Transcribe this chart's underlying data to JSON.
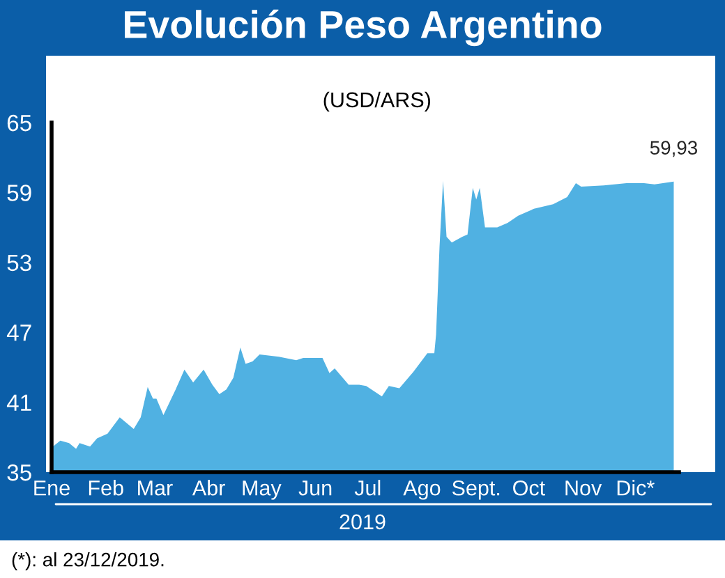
{
  "chart_data": {
    "type": "area",
    "title": "Evolución Peso Argentino",
    "subtitle": "(USD/ARS)",
    "xlabel": "2019",
    "annotations": [
      {
        "text": "59,93",
        "x": "2019-12-23",
        "y": 59.93
      },
      "(*): al 23/12/2019."
    ],
    "x": [
      "2019-01-01",
      "2019-01-06",
      "2019-01-11",
      "2019-01-15",
      "2019-01-17",
      "2019-01-23",
      "2019-01-27",
      "2019-02-02",
      "2019-02-09",
      "2019-02-17",
      "2019-02-21",
      "2019-02-25",
      "2019-02-28",
      "2019-03-02",
      "2019-03-06",
      "2019-03-13",
      "2019-03-18",
      "2019-03-23",
      "2019-03-29",
      "2019-04-03",
      "2019-04-07",
      "2019-04-11",
      "2019-04-15",
      "2019-04-19",
      "2019-04-22",
      "2019-04-26",
      "2019-04-30",
      "2019-05-11",
      "2019-05-21",
      "2019-05-25",
      "2019-06-05",
      "2019-06-09",
      "2019-06-12",
      "2019-06-20",
      "2019-06-26",
      "2019-06-30",
      "2019-07-09",
      "2019-07-13",
      "2019-07-19",
      "2019-07-27",
      "2019-08-04",
      "2019-08-08",
      "2019-08-09",
      "2019-08-11",
      "2019-08-13",
      "2019-08-15",
      "2019-08-18",
      "2019-08-24",
      "2019-08-27",
      "2019-08-30",
      "2019-09-01",
      "2019-09-03",
      "2019-09-06",
      "2019-09-13",
      "2019-09-19",
      "2019-09-25",
      "2019-10-04",
      "2019-10-15",
      "2019-10-23",
      "2019-10-28",
      "2019-10-31",
      "2019-11-13",
      "2019-11-26",
      "2019-12-06",
      "2019-12-12",
      "2019-12-23"
    ],
    "values": [
      37.1,
      37.7,
      37.5,
      37.0,
      37.5,
      37.2,
      37.9,
      38.3,
      39.7,
      38.7,
      39.7,
      42.3,
      41.3,
      41.3,
      39.9,
      42.1,
      43.8,
      42.7,
      43.8,
      42.5,
      41.7,
      42.1,
      43.1,
      45.7,
      44.3,
      44.5,
      45.1,
      44.9,
      44.6,
      44.8,
      44.8,
      43.5,
      43.9,
      42.5,
      42.5,
      42.4,
      41.5,
      42.4,
      42.2,
      43.6,
      45.2,
      45.2,
      46.8,
      54.4,
      60.0,
      55.2,
      54.7,
      55.2,
      55.4,
      59.4,
      58.4,
      59.4,
      56.0,
      56.0,
      56.4,
      57.0,
      57.6,
      58.0,
      58.6,
      59.8,
      59.5,
      59.6,
      59.8,
      59.8,
      59.7,
      59.93
    ],
    "color": "#50b1e2",
    "xlim": [
      "2019-01-01",
      "2019-12-26"
    ],
    "xticks": [
      {
        "value": "2019-01-01",
        "label": "Ene"
      },
      {
        "value": "2019-02-01",
        "label": "Feb"
      },
      {
        "value": "2019-03-01",
        "label": "Mar"
      },
      {
        "value": "2019-04-01",
        "label": "Abr"
      },
      {
        "value": "2019-05-01",
        "label": "May"
      },
      {
        "value": "2019-06-01",
        "label": "Jun"
      },
      {
        "value": "2019-07-01",
        "label": "Jul"
      },
      {
        "value": "2019-08-01",
        "label": "Ago"
      },
      {
        "value": "2019-09-01",
        "label": "Sept."
      },
      {
        "value": "2019-10-01",
        "label": "Oct"
      },
      {
        "value": "2019-11-01",
        "label": "Nov"
      },
      {
        "value": "2019-12-01",
        "label": "Dic*"
      }
    ],
    "ylim": [
      35,
      65
    ],
    "yticks": [
      35,
      41,
      47,
      53,
      59,
      65
    ]
  }
}
